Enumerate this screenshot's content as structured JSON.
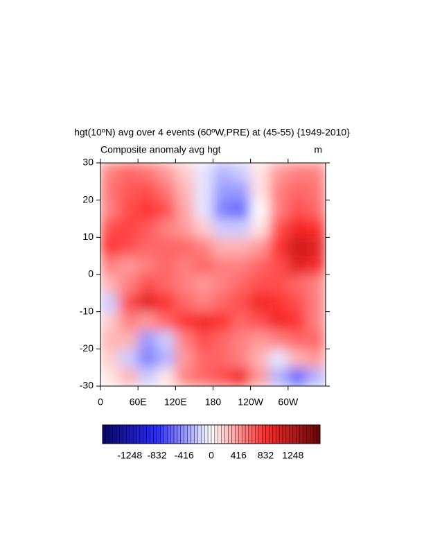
{
  "chart_data": {
    "type": "contour",
    "title": "hgt(10ºN) avg over 4 events (60ºW,PRE) at (45-55) {1949-2010}",
    "subtitle": "Composite anomaly avg hgt",
    "units": "m",
    "x": [
      15,
      45,
      75,
      105,
      135,
      165,
      195,
      225,
      255,
      285,
      315,
      345
    ],
    "y": [
      -27.5,
      -22.5,
      -17.5,
      -12.5,
      -7.5,
      -2.5,
      2.5,
      7.5,
      12.5,
      17.5,
      22.5,
      27.5
    ],
    "z": [
      [
        100,
        300,
        -200,
        100,
        500,
        600,
        700,
        900,
        400,
        -300,
        -600,
        -300
      ],
      [
        200,
        -200,
        -500,
        -300,
        400,
        600,
        600,
        500,
        300,
        -100,
        300,
        400
      ],
      [
        300,
        300,
        -400,
        -200,
        500,
        700,
        600,
        500,
        400,
        500,
        600,
        600
      ],
      [
        200,
        500,
        400,
        600,
        800,
        900,
        800,
        600,
        700,
        900,
        800,
        500
      ],
      [
        -200,
        700,
        1000,
        800,
        600,
        500,
        600,
        700,
        900,
        800,
        700,
        500
      ],
      [
        300,
        500,
        700,
        600,
        500,
        400,
        500,
        600,
        700,
        700,
        600,
        500
      ],
      [
        500,
        400,
        500,
        600,
        500,
        600,
        500,
        500,
        600,
        700,
        1000,
        900
      ],
      [
        800,
        700,
        600,
        600,
        600,
        500,
        300,
        300,
        400,
        800,
        1100,
        1000
      ],
      [
        700,
        750,
        650,
        500,
        400,
        200,
        -200,
        -200,
        100,
        700,
        900,
        850
      ],
      [
        500,
        700,
        800,
        700,
        350,
        -100,
        -500,
        -600,
        0,
        500,
        700,
        600
      ],
      [
        550,
        650,
        700,
        550,
        300,
        -100,
        -400,
        -400,
        100,
        500,
        600,
        550
      ],
      [
        500,
        600,
        550,
        400,
        200,
        -100,
        -300,
        -200,
        100,
        400,
        500,
        500
      ]
    ],
    "xlim": [
      0,
      360
    ],
    "ylim": [
      -30,
      30
    ],
    "xticks": [
      0,
      {
        "value": 60,
        "label": "60E"
      },
      {
        "value": 120,
        "label": "120E"
      },
      180,
      {
        "value": 240,
        "label": "120W"
      },
      {
        "value": 300,
        "label": "60W"
      }
    ],
    "yticks": [
      -30,
      -20,
      -10,
      0,
      10,
      20,
      30
    ],
    "clim": [
      -1664,
      1664
    ],
    "cticks": [
      -1248,
      -832,
      -416,
      0,
      416,
      832,
      1248
    ],
    "colormap": [
      "#06066a",
      "#2b2bff",
      "#ffffff",
      "#ff2b2b",
      "#6a0606"
    ]
  }
}
